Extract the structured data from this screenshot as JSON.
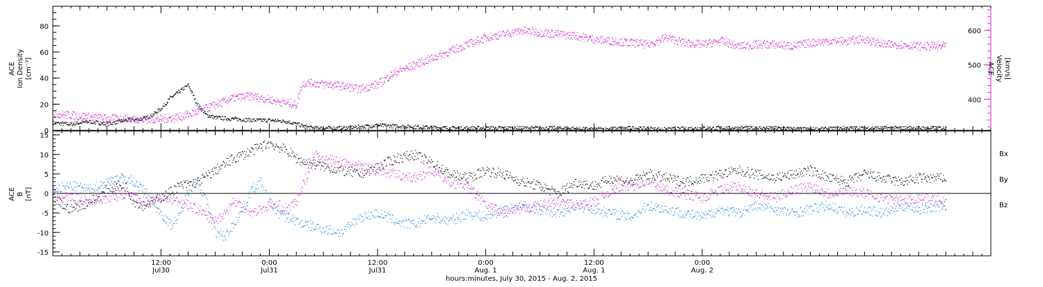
{
  "chart_data": [
    {
      "type": "scatter",
      "panel": "top",
      "ylabel_left": [
        "ACE",
        "Ion Density",
        "[cm⁻³]"
      ],
      "ylabel_right": [
        "ACE",
        "Velocity",
        "[km/s]"
      ],
      "ylim_left": [
        0,
        95
      ],
      "ylim_right": [
        310,
        670
      ],
      "yticks_left": [
        "0",
        "20",
        "40",
        "60",
        "80"
      ],
      "yticks_right": [
        "400",
        "500",
        "600"
      ],
      "colors": {
        "density": "#000000",
        "velocity": "#d020d0"
      },
      "series": [
        {
          "key": "density",
          "axis": "left",
          "x": [
            0,
            2,
            4,
            6,
            8,
            10,
            11,
            12,
            13,
            14,
            15,
            16,
            17,
            18,
            20,
            22,
            24,
            26,
            27,
            28,
            29,
            30,
            32,
            36,
            40,
            44,
            48,
            52,
            56,
            60,
            64,
            68,
            72,
            76,
            80,
            84,
            88,
            92,
            96,
            99
          ],
          "values": [
            6,
            5,
            7,
            5,
            8,
            9,
            12,
            17,
            25,
            30,
            35,
            20,
            12,
            10,
            9,
            8,
            8,
            7,
            5,
            3,
            2,
            2,
            2,
            4,
            3,
            2,
            2,
            2,
            2,
            1,
            2,
            1,
            2,
            2,
            2,
            1,
            2,
            2,
            2,
            2
          ]
        },
        {
          "key": "velocity",
          "axis": "right",
          "x": [
            0,
            2,
            4,
            6,
            8,
            10,
            12,
            14,
            16,
            18,
            20,
            22,
            24,
            26,
            27,
            27.5,
            28,
            30,
            32,
            34,
            36,
            38,
            40,
            42,
            44,
            46,
            48,
            50,
            52,
            54,
            56,
            58,
            60,
            62,
            64,
            66,
            68,
            70,
            72,
            74,
            76,
            78,
            80,
            82,
            84,
            86,
            88,
            90,
            92,
            94,
            96,
            99
          ],
          "values": [
            360,
            355,
            350,
            345,
            345,
            343,
            343,
            350,
            365,
            385,
            405,
            410,
            400,
            390,
            385,
            440,
            450,
            445,
            440,
            430,
            445,
            480,
            500,
            520,
            540,
            560,
            580,
            590,
            600,
            595,
            590,
            585,
            575,
            570,
            565,
            560,
            580,
            565,
            560,
            570,
            555,
            560,
            560,
            555,
            565,
            570,
            570,
            575,
            560,
            560,
            555,
            555
          ]
        }
      ]
    },
    {
      "type": "scatter",
      "panel": "bottom",
      "ylabel_left": [
        "ACE",
        "B",
        "[nT]"
      ],
      "ylim": [
        -16,
        16
      ],
      "yticks": [
        "-15",
        "-10",
        "-5",
        "0",
        "5",
        "10",
        "15"
      ],
      "legend": [
        "Bx",
        "By",
        "Bz"
      ],
      "legend_placement": "right",
      "series": [
        {
          "name": "Bx",
          "color": "#000000",
          "x": [
            0,
            1,
            2,
            3,
            4,
            5,
            6,
            7,
            8,
            9,
            10,
            11,
            12,
            14,
            16,
            18,
            20,
            22,
            23,
            24,
            25,
            26,
            27,
            28,
            30,
            32,
            34,
            36,
            38,
            40,
            42,
            44,
            46,
            48,
            50,
            52,
            54,
            56,
            58,
            60,
            62,
            64,
            66,
            68,
            70,
            72,
            74,
            76,
            78,
            80,
            82,
            84,
            86,
            88,
            90,
            92,
            94,
            96,
            99
          ],
          "values": [
            -1,
            -3,
            -4,
            -3,
            -2,
            -1,
            1,
            2,
            2,
            -2,
            -3,
            -2,
            -1,
            2,
            3,
            6,
            9,
            11,
            12,
            13,
            12,
            11,
            9,
            8,
            7,
            6,
            5,
            7,
            9,
            10,
            8,
            5,
            4,
            6,
            5,
            3,
            2,
            0,
            3,
            2,
            4,
            3,
            5,
            4,
            3,
            4,
            5,
            6,
            5,
            4,
            5,
            6,
            4,
            3,
            5,
            4,
            3,
            4,
            4
          ]
        },
        {
          "name": "By",
          "color": "#1e88e5",
          "x": [
            0,
            2,
            4,
            5,
            6,
            7,
            8,
            9,
            10,
            11,
            12,
            13,
            14,
            15,
            16,
            17,
            18,
            19,
            20,
            21,
            22,
            23,
            24,
            25,
            26,
            27,
            28,
            30,
            32,
            34,
            36,
            38,
            40,
            42,
            44,
            46,
            48,
            50,
            52,
            54,
            56,
            58,
            60,
            62,
            64,
            66,
            68,
            70,
            72,
            74,
            76,
            78,
            80,
            82,
            84,
            86,
            88,
            90,
            92,
            94,
            96,
            99
          ],
          "values": [
            1,
            2,
            1,
            2,
            3,
            4,
            4,
            3,
            1,
            -2,
            -5,
            -8,
            -6,
            1,
            3,
            -2,
            -10,
            -11,
            -8,
            -4,
            1,
            3,
            -2,
            -5,
            -6,
            -7,
            -8,
            -9,
            -10,
            -6,
            -5,
            -7,
            -8,
            -6,
            -7,
            -5,
            -6,
            -4,
            -3,
            -4,
            -5,
            -3,
            -4,
            -5,
            -6,
            -3,
            -4,
            -5,
            -6,
            -4,
            -5,
            -3,
            -4,
            -5,
            -4,
            -3,
            -5,
            -4,
            -5,
            -3,
            -4,
            -3
          ]
        },
        {
          "name": "Bz",
          "color": "#d020d0",
          "x": [
            0,
            2,
            4,
            6,
            8,
            10,
            12,
            14,
            16,
            18,
            19,
            20,
            21,
            22,
            23,
            24,
            25,
            26,
            27,
            28,
            29,
            30,
            32,
            34,
            36,
            38,
            40,
            42,
            44,
            46,
            48,
            50,
            52,
            54,
            56,
            58,
            60,
            62,
            64,
            66,
            68,
            70,
            72,
            74,
            76,
            78,
            80,
            82,
            84,
            86,
            88,
            90,
            92,
            94,
            96,
            99
          ],
          "values": [
            0,
            -1,
            -2,
            -1,
            0,
            -2,
            -1,
            -2,
            -4,
            -7,
            -5,
            -2,
            -3,
            -5,
            -4,
            -3,
            -3,
            -4,
            -2,
            4,
            10,
            9,
            8,
            7,
            6,
            5,
            4,
            6,
            3,
            2,
            -3,
            -5,
            -4,
            -3,
            -2,
            -3,
            -2,
            1,
            2,
            3,
            1,
            0,
            -1,
            1,
            2,
            0,
            -1,
            1,
            2,
            0,
            1,
            0,
            -1,
            -2,
            -1,
            -2
          ]
        }
      ]
    },
    {
      "type": "axis",
      "panel": "time",
      "xlim": [
        0,
        104
      ],
      "unit": "hours since start of plot",
      "major_ticks": [
        {
          "x": 12,
          "time": "12:00",
          "date": "Jul30"
        },
        {
          "x": 24,
          "time": "0:00",
          "date": "Jul31"
        },
        {
          "x": 36,
          "time": "12:00",
          "date": "Jul31"
        },
        {
          "x": 48,
          "time": "0:00",
          "date": "Aug. 1"
        },
        {
          "x": 60,
          "time": "12:00",
          "date": "Aug. 1"
        },
        {
          "x": 72,
          "time": "0:00",
          "date": "Aug. 2"
        }
      ],
      "xlabel": "hours:minutes, July 30, 2015 - Aug.  2, 2015"
    }
  ]
}
